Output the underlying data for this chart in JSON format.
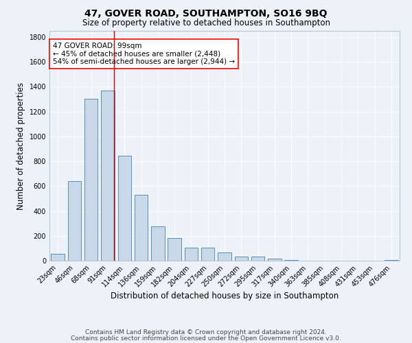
{
  "title1": "47, GOVER ROAD, SOUTHAMPTON, SO16 9BQ",
  "title2": "Size of property relative to detached houses in Southampton",
  "xlabel": "Distribution of detached houses by size in Southampton",
  "ylabel": "Number of detached properties",
  "categories": [
    "23sqm",
    "46sqm",
    "68sqm",
    "91sqm",
    "114sqm",
    "136sqm",
    "159sqm",
    "182sqm",
    "204sqm",
    "227sqm",
    "250sqm",
    "272sqm",
    "295sqm",
    "317sqm",
    "340sqm",
    "363sqm",
    "385sqm",
    "408sqm",
    "431sqm",
    "453sqm",
    "476sqm"
  ],
  "values": [
    55,
    640,
    1305,
    1370,
    845,
    530,
    275,
    185,
    105,
    105,
    65,
    35,
    35,
    18,
    8,
    0,
    0,
    0,
    0,
    0,
    8
  ],
  "bar_color": "#c8d8e8",
  "bar_edge_color": "#5590bb",
  "background_color": "#edf2f8",
  "grid_color": "#ffffff",
  "annotation_box_text": "47 GOVER ROAD: 99sqm\n← 45% of detached houses are smaller (2,448)\n54% of semi-detached houses are larger (2,944) →",
  "vline_color": "#cc0000",
  "ylim": [
    0,
    1850
  ],
  "yticks": [
    0,
    200,
    400,
    600,
    800,
    1000,
    1200,
    1400,
    1600,
    1800
  ],
  "footer1": "Contains HM Land Registry data © Crown copyright and database right 2024.",
  "footer2": "Contains public sector information licensed under the Open Government Licence v3.0.",
  "title1_fontsize": 10,
  "title2_fontsize": 8.5,
  "annotation_fontsize": 7.5,
  "footer_fontsize": 6.5,
  "axis_label_fontsize": 8.5,
  "tick_fontsize": 7
}
